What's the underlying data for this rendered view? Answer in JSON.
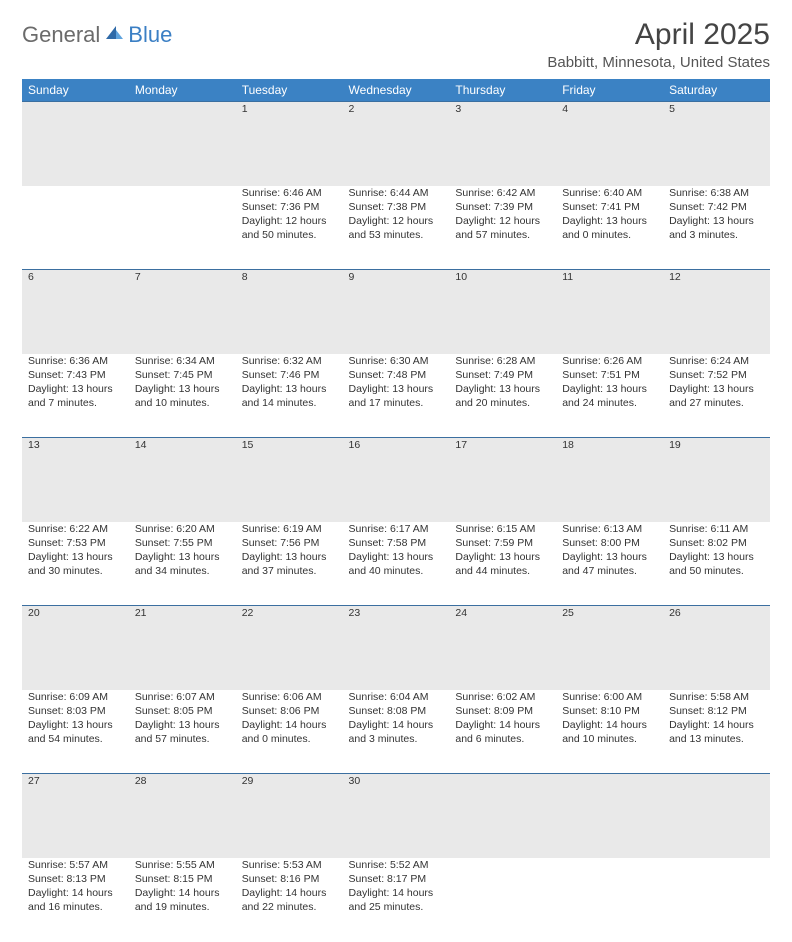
{
  "brand": {
    "general": "General",
    "blue": "Blue"
  },
  "title": "April 2025",
  "location": "Babbitt, Minnesota, United States",
  "colors": {
    "header_bg": "#3b82c4",
    "daynum_bg": "#e9e9e9",
    "border_top": "#3b6fa0",
    "text": "#333333",
    "title": "#444444"
  },
  "day_headers": [
    "Sunday",
    "Monday",
    "Tuesday",
    "Wednesday",
    "Thursday",
    "Friday",
    "Saturday"
  ],
  "weeks": [
    {
      "nums": [
        "",
        "",
        "1",
        "2",
        "3",
        "4",
        "5"
      ],
      "cells": [
        null,
        null,
        {
          "sunrise": "Sunrise: 6:46 AM",
          "sunset": "Sunset: 7:36 PM",
          "day1": "Daylight: 12 hours",
          "day2": "and 50 minutes."
        },
        {
          "sunrise": "Sunrise: 6:44 AM",
          "sunset": "Sunset: 7:38 PM",
          "day1": "Daylight: 12 hours",
          "day2": "and 53 minutes."
        },
        {
          "sunrise": "Sunrise: 6:42 AM",
          "sunset": "Sunset: 7:39 PM",
          "day1": "Daylight: 12 hours",
          "day2": "and 57 minutes."
        },
        {
          "sunrise": "Sunrise: 6:40 AM",
          "sunset": "Sunset: 7:41 PM",
          "day1": "Daylight: 13 hours",
          "day2": "and 0 minutes."
        },
        {
          "sunrise": "Sunrise: 6:38 AM",
          "sunset": "Sunset: 7:42 PM",
          "day1": "Daylight: 13 hours",
          "day2": "and 3 minutes."
        }
      ]
    },
    {
      "nums": [
        "6",
        "7",
        "8",
        "9",
        "10",
        "11",
        "12"
      ],
      "cells": [
        {
          "sunrise": "Sunrise: 6:36 AM",
          "sunset": "Sunset: 7:43 PM",
          "day1": "Daylight: 13 hours",
          "day2": "and 7 minutes."
        },
        {
          "sunrise": "Sunrise: 6:34 AM",
          "sunset": "Sunset: 7:45 PM",
          "day1": "Daylight: 13 hours",
          "day2": "and 10 minutes."
        },
        {
          "sunrise": "Sunrise: 6:32 AM",
          "sunset": "Sunset: 7:46 PM",
          "day1": "Daylight: 13 hours",
          "day2": "and 14 minutes."
        },
        {
          "sunrise": "Sunrise: 6:30 AM",
          "sunset": "Sunset: 7:48 PM",
          "day1": "Daylight: 13 hours",
          "day2": "and 17 minutes."
        },
        {
          "sunrise": "Sunrise: 6:28 AM",
          "sunset": "Sunset: 7:49 PM",
          "day1": "Daylight: 13 hours",
          "day2": "and 20 minutes."
        },
        {
          "sunrise": "Sunrise: 6:26 AM",
          "sunset": "Sunset: 7:51 PM",
          "day1": "Daylight: 13 hours",
          "day2": "and 24 minutes."
        },
        {
          "sunrise": "Sunrise: 6:24 AM",
          "sunset": "Sunset: 7:52 PM",
          "day1": "Daylight: 13 hours",
          "day2": "and 27 minutes."
        }
      ]
    },
    {
      "nums": [
        "13",
        "14",
        "15",
        "16",
        "17",
        "18",
        "19"
      ],
      "cells": [
        {
          "sunrise": "Sunrise: 6:22 AM",
          "sunset": "Sunset: 7:53 PM",
          "day1": "Daylight: 13 hours",
          "day2": "and 30 minutes."
        },
        {
          "sunrise": "Sunrise: 6:20 AM",
          "sunset": "Sunset: 7:55 PM",
          "day1": "Daylight: 13 hours",
          "day2": "and 34 minutes."
        },
        {
          "sunrise": "Sunrise: 6:19 AM",
          "sunset": "Sunset: 7:56 PM",
          "day1": "Daylight: 13 hours",
          "day2": "and 37 minutes."
        },
        {
          "sunrise": "Sunrise: 6:17 AM",
          "sunset": "Sunset: 7:58 PM",
          "day1": "Daylight: 13 hours",
          "day2": "and 40 minutes."
        },
        {
          "sunrise": "Sunrise: 6:15 AM",
          "sunset": "Sunset: 7:59 PM",
          "day1": "Daylight: 13 hours",
          "day2": "and 44 minutes."
        },
        {
          "sunrise": "Sunrise: 6:13 AM",
          "sunset": "Sunset: 8:00 PM",
          "day1": "Daylight: 13 hours",
          "day2": "and 47 minutes."
        },
        {
          "sunrise": "Sunrise: 6:11 AM",
          "sunset": "Sunset: 8:02 PM",
          "day1": "Daylight: 13 hours",
          "day2": "and 50 minutes."
        }
      ]
    },
    {
      "nums": [
        "20",
        "21",
        "22",
        "23",
        "24",
        "25",
        "26"
      ],
      "cells": [
        {
          "sunrise": "Sunrise: 6:09 AM",
          "sunset": "Sunset: 8:03 PM",
          "day1": "Daylight: 13 hours",
          "day2": "and 54 minutes."
        },
        {
          "sunrise": "Sunrise: 6:07 AM",
          "sunset": "Sunset: 8:05 PM",
          "day1": "Daylight: 13 hours",
          "day2": "and 57 minutes."
        },
        {
          "sunrise": "Sunrise: 6:06 AM",
          "sunset": "Sunset: 8:06 PM",
          "day1": "Daylight: 14 hours",
          "day2": "and 0 minutes."
        },
        {
          "sunrise": "Sunrise: 6:04 AM",
          "sunset": "Sunset: 8:08 PM",
          "day1": "Daylight: 14 hours",
          "day2": "and 3 minutes."
        },
        {
          "sunrise": "Sunrise: 6:02 AM",
          "sunset": "Sunset: 8:09 PM",
          "day1": "Daylight: 14 hours",
          "day2": "and 6 minutes."
        },
        {
          "sunrise": "Sunrise: 6:00 AM",
          "sunset": "Sunset: 8:10 PM",
          "day1": "Daylight: 14 hours",
          "day2": "and 10 minutes."
        },
        {
          "sunrise": "Sunrise: 5:58 AM",
          "sunset": "Sunset: 8:12 PM",
          "day1": "Daylight: 14 hours",
          "day2": "and 13 minutes."
        }
      ]
    },
    {
      "nums": [
        "27",
        "28",
        "29",
        "30",
        "",
        "",
        ""
      ],
      "cells": [
        {
          "sunrise": "Sunrise: 5:57 AM",
          "sunset": "Sunset: 8:13 PM",
          "day1": "Daylight: 14 hours",
          "day2": "and 16 minutes."
        },
        {
          "sunrise": "Sunrise: 5:55 AM",
          "sunset": "Sunset: 8:15 PM",
          "day1": "Daylight: 14 hours",
          "day2": "and 19 minutes."
        },
        {
          "sunrise": "Sunrise: 5:53 AM",
          "sunset": "Sunset: 8:16 PM",
          "day1": "Daylight: 14 hours",
          "day2": "and 22 minutes."
        },
        {
          "sunrise": "Sunrise: 5:52 AM",
          "sunset": "Sunset: 8:17 PM",
          "day1": "Daylight: 14 hours",
          "day2": "and 25 minutes."
        },
        null,
        null,
        null
      ]
    }
  ]
}
